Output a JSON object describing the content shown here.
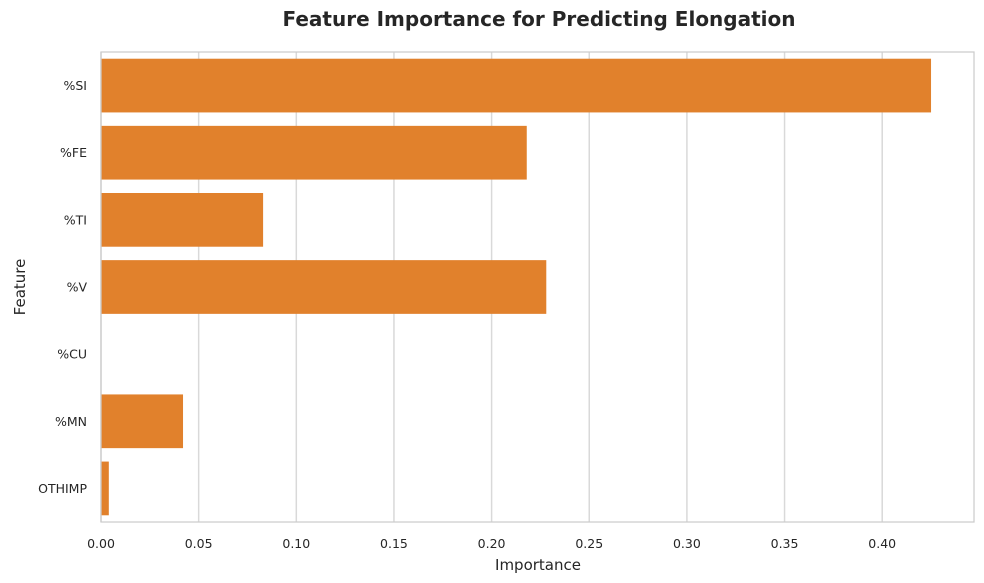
{
  "chart_data": {
    "type": "bar",
    "orientation": "horizontal",
    "title": "Feature Importance for Predicting Elongation",
    "xlabel": "Importance",
    "ylabel": "Feature",
    "categories": [
      "%SI",
      "%FE",
      "%TI",
      "%V",
      "%CU",
      "%MN",
      "OTHIMP"
    ],
    "values": [
      0.425,
      0.218,
      0.083,
      0.228,
      0.0,
      0.042,
      0.004
    ],
    "xlim": [
      0,
      0.447
    ],
    "xticks": [
      0.0,
      0.05,
      0.1,
      0.15,
      0.2,
      0.25,
      0.3,
      0.35,
      0.4
    ],
    "xtick_labels": [
      "0.00",
      "0.05",
      "0.10",
      "0.15",
      "0.20",
      "0.25",
      "0.30",
      "0.35",
      "0.40"
    ],
    "grid": "vertical",
    "bar_color": "#e1812c",
    "grid_color": "#d9d9d9",
    "frame_color": "#cccccc"
  }
}
